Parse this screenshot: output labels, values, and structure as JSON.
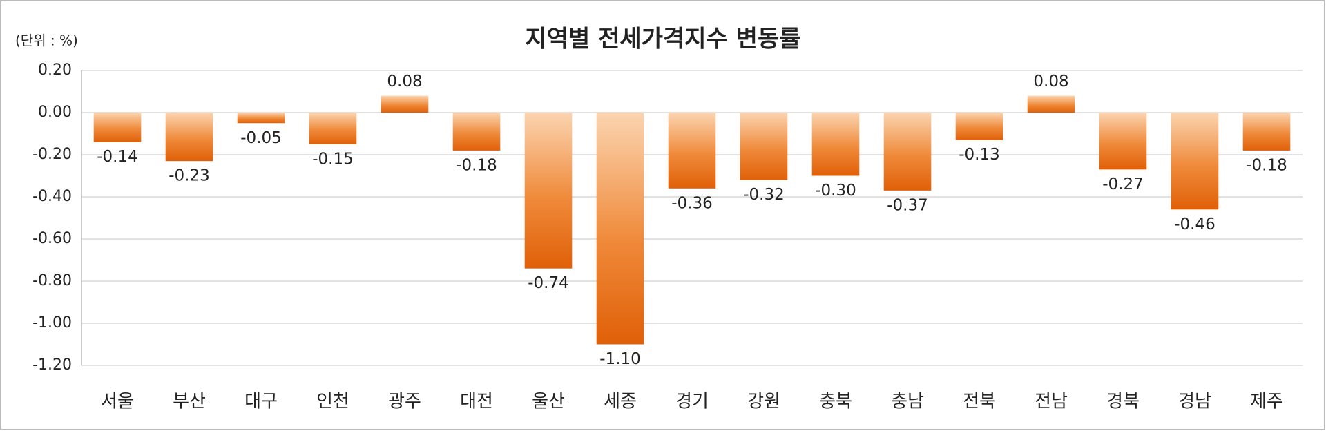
{
  "chart_data": {
    "type": "bar",
    "title": "지역별 전세가격지수 변동률",
    "unit_label": "(단위 : %)",
    "categories": [
      "서울",
      "부산",
      "대구",
      "인천",
      "광주",
      "대전",
      "울산",
      "세종",
      "경기",
      "강원",
      "충북",
      "충남",
      "전북",
      "전남",
      "경북",
      "경남",
      "제주"
    ],
    "values": [
      -0.14,
      -0.23,
      -0.05,
      -0.15,
      0.08,
      -0.18,
      -0.74,
      -1.1,
      -0.36,
      -0.32,
      -0.3,
      -0.37,
      -0.13,
      0.08,
      -0.27,
      -0.46,
      -0.18
    ],
    "value_labels": [
      "-0.14",
      "-0.23",
      "-0.05",
      "-0.15",
      "0.08",
      "-0.18",
      "-0.74",
      "-1.10",
      "-0.36",
      "-0.32",
      "-0.30",
      "-0.37",
      "-0.13",
      "0.08",
      "-0.27",
      "-0.46",
      "-0.18"
    ],
    "color": "#e36c0a",
    "ylim": [
      -1.2,
      0.2
    ],
    "yticks": [
      {
        "value": 0.2,
        "label": "0.20"
      },
      {
        "value": 0,
        "label": "0.00"
      },
      {
        "value": -0.2,
        "label": "-0.20"
      },
      {
        "value": -0.4,
        "label": "-0.40"
      },
      {
        "value": -0.6,
        "label": "-0.60"
      },
      {
        "value": -0.8,
        "label": "-0.80"
      },
      {
        "value": -1.0,
        "label": "-1.00"
      },
      {
        "value": -1.2,
        "label": "-1.20"
      }
    ],
    "grid": true
  }
}
